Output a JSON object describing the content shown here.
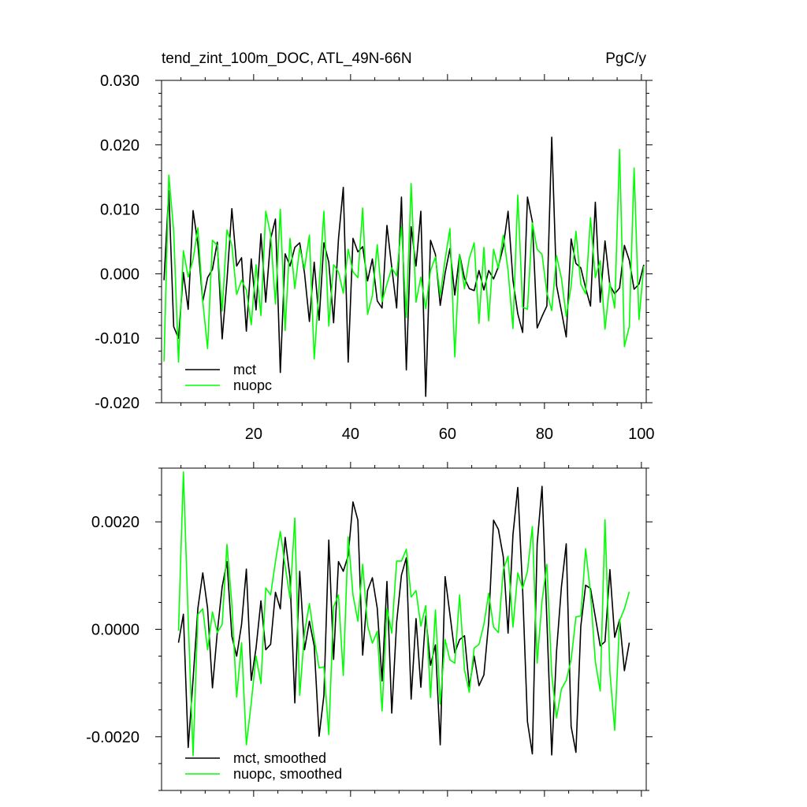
{
  "header": {
    "title": "tend_zint_100m_DOC, ATL_49N-66N",
    "units": "PgC/y"
  },
  "chart_data": [
    {
      "type": "line",
      "xlim": [
        1,
        101
      ],
      "ylim": [
        -0.02,
        0.03
      ],
      "x_start": 1.5,
      "x_step": 1,
      "xticks": [
        20,
        40,
        60,
        80,
        100
      ],
      "xtick_labels": [
        "20",
        "40",
        "60",
        "80",
        "100"
      ],
      "yticks": [
        0.03,
        0.02,
        0.01,
        0.0,
        -0.01,
        -0.02
      ],
      "ytick_labels": [
        "0.030",
        "0.020",
        "0.010",
        "0.000",
        "-0.010",
        "-0.020"
      ],
      "legend_position": "bottom-left",
      "grid": false,
      "series": [
        {
          "name": "mct",
          "color": "#000000",
          "values": [
            -0.001,
            0.0129,
            -0.0082,
            -0.01,
            0.0002,
            -0.0055,
            0.0098,
            0.0046,
            -0.0043,
            -0.0006,
            0.0007,
            0.0049,
            -0.0101,
            -0.001,
            0.0101,
            0.0012,
            0.0025,
            -0.0089,
            0.0023,
            -0.0056,
            0.0062,
            -0.0044,
            0.0054,
            0.0085,
            -0.0153,
            0.0031,
            0.0012,
            0.0041,
            0.0048,
            0.0001,
            -0.0074,
            0.0018,
            -0.0072,
            0.0048,
            0.0018,
            -0.0076,
            0.0054,
            0.0134,
            -0.0137,
            0.0055,
            0.0034,
            0.0042,
            -0.0011,
            0.0023,
            -0.0042,
            -0.0053,
            0.0075,
            0.001,
            -0.0053,
            0.0119,
            -0.0149,
            0.0073,
            0.0012,
            0.0097,
            -0.019,
            0.0052,
            0.003,
            -0.0049,
            0.0001,
            0.0039,
            -0.0033,
            0.003,
            -0.0007,
            -0.0023,
            -0.0026,
            0.0005,
            -0.0025,
            0.0005,
            -0.0008,
            0.0011,
            0.0042,
            0.0097,
            -0.001,
            -0.0062,
            -0.0091,
            0.0119,
            0.0081,
            -0.0084,
            -0.0066,
            -0.005,
            0.0212,
            -0.0018,
            -0.0058,
            -0.0098,
            0.0054,
            0.0016,
            0.0009,
            -0.0022,
            -0.005,
            0.0111,
            -0.0044,
            0.0051,
            -0.0018,
            -0.0031,
            -0.0022,
            0.0044,
            0.0021,
            -0.0024,
            -0.0016,
            0.0014
          ]
        },
        {
          "name": "nuopc",
          "color": "#00ff00",
          "values": [
            -0.0136,
            0.0153,
            0.0066,
            -0.0137,
            0.0036,
            -0.0005,
            0.0022,
            0.0071,
            -0.0043,
            -0.0116,
            0.0052,
            0.0044,
            -0.0058,
            0.0068,
            0.0044,
            -0.0032,
            -0.001,
            -0.0025,
            -0.0079,
            0.0014,
            -0.0065,
            0.0097,
            0.0061,
            -0.0047,
            0.01,
            -0.0088,
            0.0055,
            -0.0023,
            0.004,
            0.0008,
            0.006,
            -0.0132,
            -0.002,
            0.0097,
            -0.0081,
            0.0014,
            0.0003,
            -0.003,
            0.0038,
            0.0003,
            -0.0006,
            0.0102,
            -0.0063,
            -0.0034,
            0.0045,
            -0.0043,
            -0.0016,
            0.0009,
            -0.0003,
            0.0074,
            -0.0068,
            0.014,
            -0.0044,
            -0.0005,
            -0.0054,
            0.0005,
            0.0026,
            -0.0034,
            0.0022,
            0.007,
            -0.0129,
            0.003,
            -0.0023,
            0.0024,
            0.0048,
            -0.0077,
            0.0041,
            -0.0073,
            0.0038,
            0.0008,
            0.006,
            0.0005,
            -0.0085,
            0.0122,
            -0.0052,
            -0.0055,
            0.0079,
            0.0038,
            0.003,
            -0.0029,
            -0.0057,
            0.0028,
            -0.0007,
            -0.0066,
            -0.0019,
            0.0066,
            -0.0016,
            -0.0031,
            0.0087,
            -0.0006,
            0.002,
            -0.0086,
            -0.0014,
            -0.0053,
            0.0193,
            -0.0113,
            -0.0082,
            0.0164,
            -0.0071,
            0.0012
          ]
        }
      ]
    },
    {
      "type": "line",
      "xlim": [
        1,
        101
      ],
      "ylim": [
        -0.003,
        0.003
      ],
      "x_start": 4.5,
      "x_step": 1,
      "xticks": [
        20,
        40,
        60,
        80,
        100
      ],
      "xtick_labels": [],
      "yticks": [
        0.002,
        0.0,
        -0.002
      ],
      "ytick_labels": [
        "0.0020",
        "0.0000",
        "-0.0020"
      ],
      "legend_position": "bottom-left",
      "grid": false,
      "series": [
        {
          "name": "mct, smoothed",
          "color": "#000000",
          "values": [
            -0.00025,
            0.00028,
            -0.0022,
            -0.00093,
            0.00039,
            0.00105,
            0.00039,
            -0.00109,
            -6e-05,
            0.00079,
            0.00126,
            -0.00013,
            -0.0005,
            9e-05,
            0.00112,
            -0.00095,
            -0.00035,
            0.00053,
            -0.00038,
            -0.00028,
            0.00069,
            0.00038,
            0.00171,
            0.00096,
            -0.00137,
            0.00108,
            -0.00038,
            0.00015,
            -0.00031,
            -0.00199,
            -0.00123,
            0.00166,
            -0.00056,
            0.00126,
            0.00108,
            0.00137,
            0.00237,
            0.00203,
            -0.00048,
            0.00072,
            0.00096,
            0.00039,
            -0.00096,
            0.00089,
            -0.00156,
            0.00013,
            0.00101,
            0.00133,
            -0.0013,
            0.0002,
            -0.00108,
            0.00025,
            -0.00067,
            -0.00029,
            -0.00215,
            0.00098,
            0.00028,
            -0.00044,
            -0.00019,
            -0.00012,
            -0.00107,
            -0.0005,
            -0.00105,
            -0.00085,
            0.00013,
            0.00203,
            0.00186,
            0.00135,
            -7e-05,
            0.00176,
            0.00264,
            0.00072,
            -0.00172,
            -0.00232,
            0.00159,
            0.00266,
            0.00018,
            -0.00234,
            -0.00041,
            0.00079,
            0.00159,
            -0.00181,
            -0.00229,
            6e-05,
            0.00082,
            0.00076,
            0.00023,
            -0.00031,
            -0.00023,
            0.00111,
            -0.00015,
            0.00018,
            -0.00077,
            -0.00025
          ]
        },
        {
          "name": "nuopc, smoothed",
          "color": "#00ff00",
          "values": [
            -3e-05,
            0.00293,
            0.0002,
            -0.00235,
            0.00028,
            0.00038,
            -0.00038,
            0.00032,
            -6e-05,
            9e-05,
            0.00158,
            0.00047,
            -0.00126,
            -0.00025,
            -0.00215,
            -0.00137,
            -0.0005,
            -0.00101,
            0.00077,
            0.00064,
            0.00126,
            0.00182,
            0.00118,
            0.00058,
            0.00207,
            -0.00123,
            -6e-05,
            0.00048,
            -0.00016,
            -0.00072,
            -0.0007,
            -0.00196,
            0.00042,
            0.00064,
            -0.00086,
            0.00172,
            0.00064,
            0.00015,
            0.00121,
            7e-05,
            -0.00026,
            -4e-05,
            -0.00152,
            0.00039,
            -7e-05,
            0.00127,
            0.00127,
            0.00149,
            0.0006,
            0.00072,
            6e-05,
            0.00044,
            -0.00127,
            0.00036,
            -0.00139,
            -0.00019,
            -0.00057,
            -0.00063,
            0.00064,
            -0.00076,
            -0.00117,
            -0.00035,
            -0.00028,
            9e-05,
            0.00067,
            4e-05,
            -6e-05,
            0.00111,
            0.00136,
            4e-05,
            0.00105,
            0.00076,
            0.00108,
            0.00191,
            -0.00063,
            0.00053,
            0.00121,
            -0.00085,
            -0.00165,
            -0.00111,
            -0.00095,
            -0.00057,
            0.00023,
            0.00025,
            0.0015,
            0.00067,
            -0.0006,
            -0.00115,
            0.00204,
            -0.00079,
            -0.00188,
            0.00016,
            0.00038,
            0.0007
          ]
        }
      ]
    }
  ]
}
